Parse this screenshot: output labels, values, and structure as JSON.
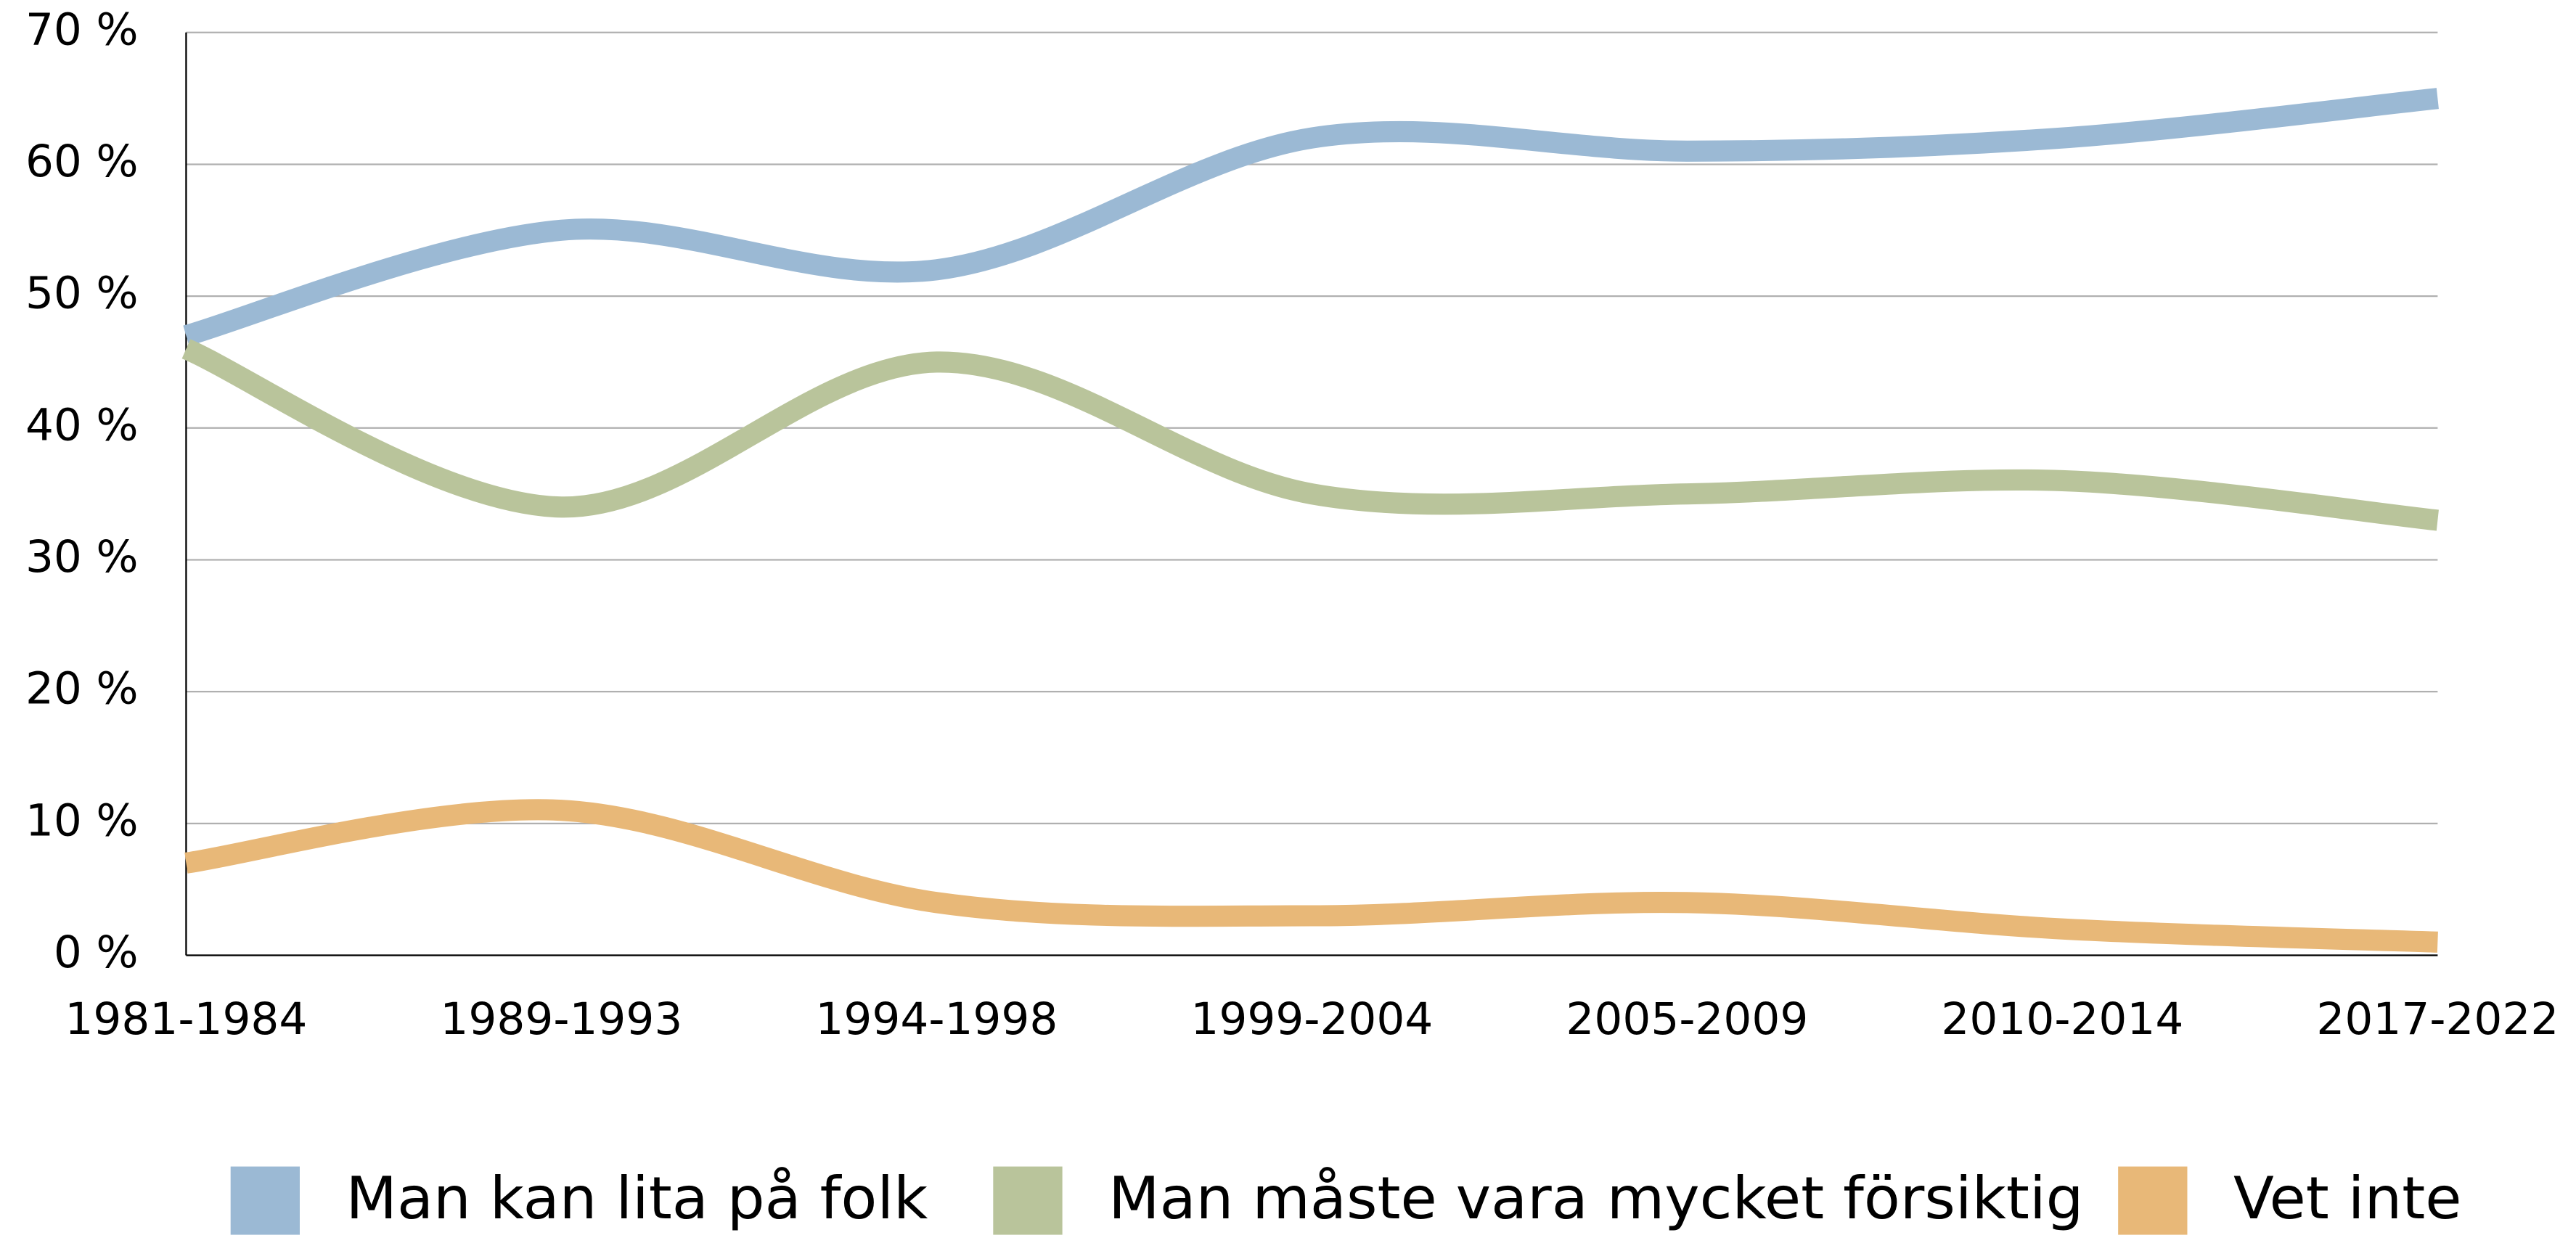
{
  "chart_data": {
    "type": "line",
    "categories": [
      "1981-1984",
      "1989-1993",
      "1994-1998",
      "1999-2004",
      "2005-2009",
      "2010-2014",
      "2017-2022"
    ],
    "series": [
      {
        "name": "Man kan lita på folk",
        "color": "#9bb9d4",
        "values": [
          47,
          55,
          52,
          62,
          61,
          62,
          65
        ]
      },
      {
        "name": "Man måste vara mycket försiktig",
        "color": "#b9c49b",
        "values": [
          46,
          34,
          45,
          35,
          35,
          36,
          33
        ]
      },
      {
        "name": "Vet inte",
        "color": "#e8b878",
        "values": [
          7,
          11,
          4,
          3,
          4,
          2,
          1
        ]
      }
    ],
    "ylim": [
      0,
      70
    ],
    "yticks": [
      {
        "value": 0,
        "label": "0 %"
      },
      {
        "value": 10,
        "label": "10 %"
      },
      {
        "value": 20,
        "label": "20 %"
      },
      {
        "value": 30,
        "label": "30 %"
      },
      {
        "value": 40,
        "label": "40 %"
      },
      {
        "value": 50,
        "label": "50 %"
      },
      {
        "value": 60,
        "label": "60 %"
      },
      {
        "value": 70,
        "label": "70 %"
      }
    ],
    "grid": true,
    "legend": "bottom"
  }
}
